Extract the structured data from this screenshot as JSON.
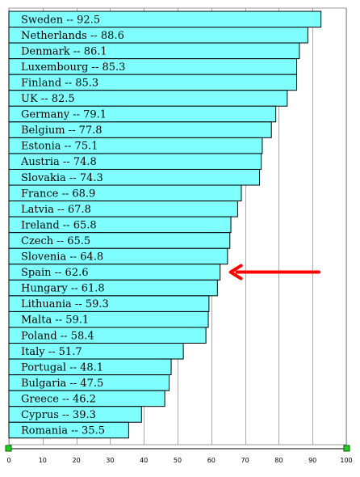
{
  "chart_data": {
    "type": "bar",
    "orientation": "horizontal",
    "title": "",
    "xlabel": "",
    "ylabel": "",
    "xlim": [
      0,
      100
    ],
    "x_ticks": [
      0,
      10,
      20,
      30,
      40,
      50,
      60,
      70,
      80,
      90,
      100
    ],
    "grid": "vertical",
    "bar_color": "#80ffff",
    "bar_edge_color": "#000000",
    "arrow_color": "#ff0000",
    "arrow_points_to": "Spain -- 62.6",
    "categories": [
      "Sweden -- 92.5",
      "Netherlands -- 88.6",
      "Denmark -- 86.1",
      "Luxembourg -- 85.3",
      "Finland -- 85.3",
      "UK -- 82.5",
      "Germany -- 79.1",
      "Belgium -- 77.8",
      "Estonia -- 75.1",
      "Austria -- 74.8",
      "Slovakia -- 74.3",
      "France -- 68.9",
      "Latvia -- 67.8",
      "Ireland -- 65.8",
      "Czech -- 65.5",
      "Slovenia -- 64.8",
      "Spain -- 62.6",
      "Hungary -- 61.8",
      "Lithuania -- 59.3",
      "Malta -- 59.1",
      "Poland -- 58.4",
      "Italy -- 51.7",
      "Portugal -- 48.1",
      "Bulgaria -- 47.5",
      "Greece -- 46.2",
      "Cyprus -- 39.3",
      "Romania -- 35.5"
    ],
    "values": [
      92.5,
      88.6,
      86.1,
      85.3,
      85.3,
      82.5,
      79.1,
      77.8,
      75.1,
      74.8,
      74.3,
      68.9,
      67.8,
      65.8,
      65.5,
      64.8,
      62.6,
      61.8,
      59.3,
      59.1,
      58.4,
      51.7,
      48.1,
      47.5,
      46.2,
      39.3,
      35.5
    ]
  }
}
